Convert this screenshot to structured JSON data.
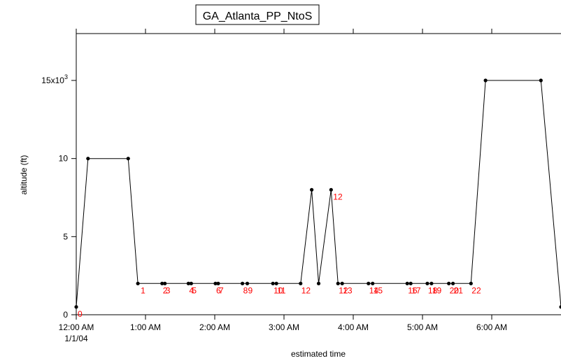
{
  "chart_data": {
    "type": "line",
    "title": "GA_Atlanta_PP_NtoS",
    "xlabel": "estimated time",
    "ylabel": "altitude (ft)",
    "x_unit": "hours after 12:00 AM 1/1/04",
    "xlim": [
      0,
      7
    ],
    "ylim": [
      0,
      18
    ],
    "x_ticks": [
      {
        "value": 0,
        "label": "12:00 AM",
        "sublabel": "1/1/04"
      },
      {
        "value": 1,
        "label": "1:00 AM",
        "sublabel": ""
      },
      {
        "value": 2,
        "label": "2:00 AM",
        "sublabel": ""
      },
      {
        "value": 3,
        "label": "3:00 AM",
        "sublabel": ""
      },
      {
        "value": 4,
        "label": "4:00 AM",
        "sublabel": ""
      },
      {
        "value": 5,
        "label": "5:00 AM",
        "sublabel": ""
      },
      {
        "value": 6,
        "label": "6:00 AM",
        "sublabel": ""
      }
    ],
    "y_ticks": [
      {
        "value": 0,
        "label": "0"
      },
      {
        "value": 5,
        "label": "5"
      },
      {
        "value": 10,
        "label": "10"
      },
      {
        "value": 15,
        "label": "15x10",
        "exponent": "3"
      }
    ],
    "line_color": "#000000",
    "marker_color": "#000000",
    "label_color": "#ff0000",
    "grid": false,
    "series": [
      {
        "points": [
          {
            "x": 0.0,
            "y": 0.5
          },
          {
            "x": 0.17,
            "y": 10
          },
          {
            "x": 0.75,
            "y": 10
          },
          {
            "x": 0.89,
            "y": 2
          },
          {
            "x": 1.24,
            "y": 2
          },
          {
            "x": 1.28,
            "y": 2
          },
          {
            "x": 1.62,
            "y": 2
          },
          {
            "x": 1.66,
            "y": 2
          },
          {
            "x": 2.01,
            "y": 2
          },
          {
            "x": 2.05,
            "y": 2
          },
          {
            "x": 2.4,
            "y": 2
          },
          {
            "x": 2.47,
            "y": 2
          },
          {
            "x": 2.84,
            "y": 2
          },
          {
            "x": 2.89,
            "y": 2
          },
          {
            "x": 3.24,
            "y": 2
          },
          {
            "x": 3.4,
            "y": 8
          },
          {
            "x": 3.5,
            "y": 2
          },
          {
            "x": 3.68,
            "y": 8
          },
          {
            "x": 3.78,
            "y": 2
          },
          {
            "x": 3.84,
            "y": 2
          },
          {
            "x": 4.22,
            "y": 2
          },
          {
            "x": 4.28,
            "y": 2
          },
          {
            "x": 4.78,
            "y": 2
          },
          {
            "x": 4.83,
            "y": 2
          },
          {
            "x": 5.07,
            "y": 2
          },
          {
            "x": 5.13,
            "y": 2
          },
          {
            "x": 5.38,
            "y": 2
          },
          {
            "x": 5.44,
            "y": 2
          },
          {
            "x": 5.7,
            "y": 2
          },
          {
            "x": 5.91,
            "y": 15
          },
          {
            "x": 6.71,
            "y": 15
          },
          {
            "x": 7.0,
            "y": 0.5
          }
        ]
      }
    ],
    "annotations": [
      {
        "text": "0",
        "x": 0.01,
        "y": 0.5
      },
      {
        "text": "1",
        "x": 0.92,
        "y": 2
      },
      {
        "text": "2",
        "x": 1.24,
        "y": 2
      },
      {
        "text": "3",
        "x": 1.28,
        "y": 2
      },
      {
        "text": "4",
        "x": 1.62,
        "y": 2
      },
      {
        "text": "5",
        "x": 1.66,
        "y": 2
      },
      {
        "text": "6",
        "x": 2.01,
        "y": 2
      },
      {
        "text": "7",
        "x": 2.05,
        "y": 2
      },
      {
        "text": "8",
        "x": 2.4,
        "y": 2
      },
      {
        "text": "9",
        "x": 2.47,
        "y": 2
      },
      {
        "text": "10",
        "x": 2.84,
        "y": 2
      },
      {
        "text": "11",
        "x": 2.89,
        "y": 2
      },
      {
        "text": "12",
        "x": 3.24,
        "y": 2
      },
      {
        "text": "12",
        "x": 3.7,
        "y": 8
      },
      {
        "text": "12",
        "x": 3.78,
        "y": 2
      },
      {
        "text": "13",
        "x": 3.84,
        "y": 2
      },
      {
        "text": "14",
        "x": 4.22,
        "y": 2
      },
      {
        "text": "15",
        "x": 4.28,
        "y": 2
      },
      {
        "text": "16",
        "x": 4.78,
        "y": 2
      },
      {
        "text": "17",
        "x": 4.83,
        "y": 2
      },
      {
        "text": "18",
        "x": 5.07,
        "y": 2
      },
      {
        "text": "19",
        "x": 5.13,
        "y": 2
      },
      {
        "text": "20",
        "x": 5.38,
        "y": 2
      },
      {
        "text": "21",
        "x": 5.44,
        "y": 2
      },
      {
        "text": "22",
        "x": 5.7,
        "y": 2
      }
    ]
  }
}
